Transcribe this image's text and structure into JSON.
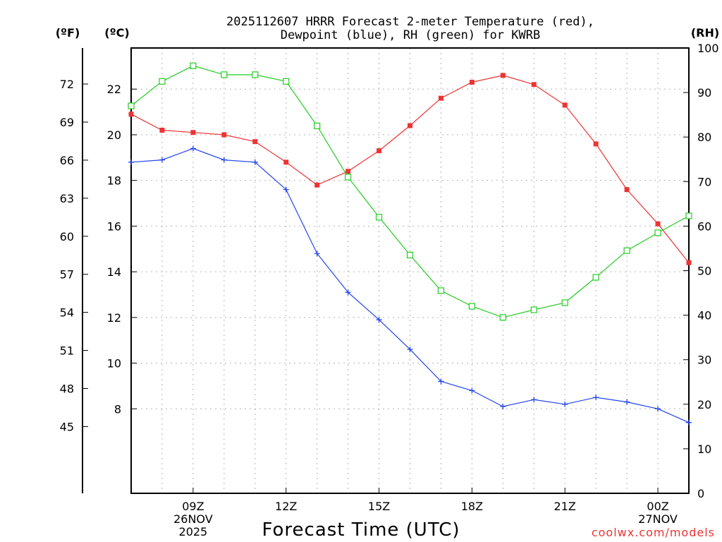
{
  "chart_data": {
    "type": "line",
    "title_lines": [
      "2025112607 HRRR Forecast 2-meter Temperature (red),",
      "Dewpoint (blue), RH (green) for KWRB"
    ],
    "xlabel": "Forecast Time (UTC)",
    "credit": "coolwx.com/models",
    "units": {
      "fahrenheit": "(ºF)",
      "celsius": "(ºC)",
      "rh": "(RH)"
    },
    "x": [
      7,
      8,
      9,
      10,
      11,
      12,
      13,
      14,
      15,
      16,
      17,
      18,
      19,
      20,
      21,
      22,
      23,
      24,
      25
    ],
    "xlim": [
      7,
      25
    ],
    "x_ticks": [
      {
        "x": 9,
        "lines": [
          "09Z",
          "26NOV",
          "2025"
        ]
      },
      {
        "x": 12,
        "lines": [
          "12Z"
        ]
      },
      {
        "x": 15,
        "lines": [
          "15Z"
        ]
      },
      {
        "x": 18,
        "lines": [
          "18Z"
        ]
      },
      {
        "x": 21,
        "lines": [
          "21Z"
        ]
      },
      {
        "x": 24,
        "lines": [
          "00Z",
          "27NOV"
        ]
      }
    ],
    "celsius_axis": {
      "ylim": [
        4.3,
        23.8
      ],
      "ticks": [
        8,
        10,
        12,
        14,
        16,
        18,
        20,
        22
      ]
    },
    "fahrenheit_ticks": [
      45,
      48,
      51,
      54,
      57,
      60,
      63,
      66,
      69,
      72
    ],
    "rh_axis": {
      "ylim": [
        0,
        100
      ],
      "ticks": [
        0,
        10,
        20,
        30,
        40,
        50,
        60,
        70,
        80,
        90,
        100
      ]
    },
    "series": [
      {
        "name": "Temperature",
        "axis": "celsius",
        "color": "#ee3333",
        "marker": "filled-square",
        "values": [
          20.9,
          20.2,
          20.1,
          20.0,
          19.7,
          18.8,
          17.8,
          18.4,
          19.3,
          20.4,
          21.6,
          22.3,
          22.6,
          22.2,
          21.3,
          19.6,
          17.6,
          16.1,
          14.4
        ]
      },
      {
        "name": "Dewpoint",
        "axis": "celsius",
        "color": "#2244ee",
        "marker": "plus",
        "values": [
          18.8,
          18.9,
          19.4,
          18.9,
          18.8,
          17.6,
          14.8,
          13.1,
          11.9,
          10.6,
          9.2,
          8.8,
          8.1,
          8.4,
          8.2,
          8.5,
          8.3,
          8.0,
          7.4
        ]
      },
      {
        "name": "RH",
        "axis": "rh",
        "color": "#22cc22",
        "marker": "open-square",
        "values": [
          87,
          92.5,
          96,
          94,
          94,
          92.5,
          82.5,
          71,
          62,
          53.5,
          45.5,
          42,
          39.5,
          41.2,
          42.8,
          48.5,
          54.5,
          58.5,
          62.3
        ]
      }
    ]
  }
}
